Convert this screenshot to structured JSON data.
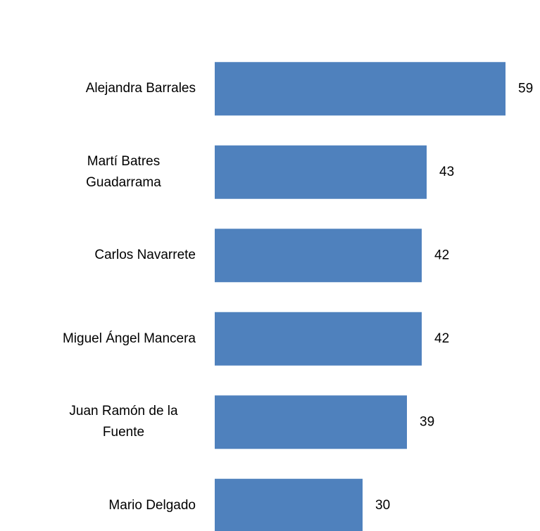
{
  "chart_data": {
    "type": "bar",
    "orientation": "horizontal",
    "categories": [
      "Alejandra Barrales",
      "Martí Batres Guadarrama",
      "Carlos Navarrete",
      "Miguel Ángel Mancera",
      "Juan Ramón de la Fuente",
      "Mario Delgado"
    ],
    "values": [
      59,
      43,
      42,
      42,
      39,
      30
    ],
    "color": "#4f81bd"
  }
}
